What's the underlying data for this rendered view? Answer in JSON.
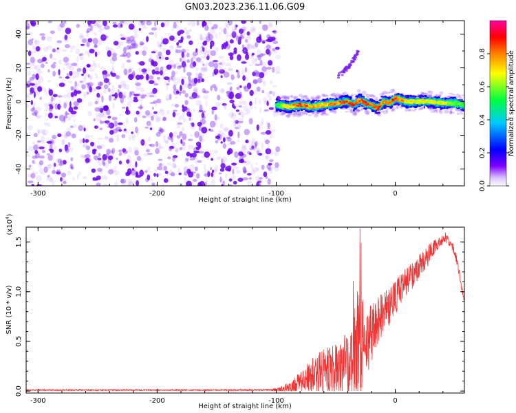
{
  "title": "GN03.2023.236.11.06.G09",
  "colors": {
    "snr_line": "#ee3333",
    "spectrum_noise": "#7a1ff0",
    "colorbar_stops": [
      "#ffffff",
      "#7f00ff",
      "#0000ff",
      "#00c8ff",
      "#00ff40",
      "#ffff00",
      "#ff8000",
      "#ff0000",
      "#ff00a0"
    ]
  },
  "chart_data": [
    {
      "type": "heatmap",
      "name": "spectrogram",
      "xlabel": "Height of straight line (km)",
      "ylabel": "Frequency (Hz)",
      "xlim": [
        -310,
        58
      ],
      "ylim": [
        -50,
        48
      ],
      "xticks": [
        -300,
        -200,
        -100,
        0
      ],
      "yticks": [
        -40,
        -20,
        0,
        20,
        40
      ],
      "xtick_labels": [
        "-300",
        "-200",
        "-100",
        "0"
      ],
      "ytick_labels": [
        "-40",
        "-20",
        "0",
        "20",
        "40"
      ],
      "noise_region_x": [
        -310,
        -98
      ],
      "ridge": {
        "x": [
          -100,
          -90,
          -80,
          -70,
          -60,
          -50,
          -40,
          -35,
          -30,
          -25,
          -20,
          -15,
          -10,
          -5,
          0,
          10,
          20,
          30,
          40,
          50,
          58
        ],
        "freq": [
          -2,
          -3,
          -2,
          -3,
          -2,
          -1,
          0,
          -2,
          1,
          -1,
          -2,
          -4,
          0,
          -1,
          2,
          0,
          0,
          0,
          -1,
          -1,
          -2
        ],
        "amplitude": [
          0.55,
          0.75,
          0.85,
          0.8,
          0.75,
          0.85,
          0.85,
          0.9,
          0.85,
          0.95,
          0.85,
          0.9,
          0.8,
          0.8,
          0.9,
          0.75,
          0.7,
          0.7,
          0.7,
          0.6,
          0.55
        ]
      },
      "branch": {
        "x": [
          -48,
          -40,
          -35,
          -30
        ],
        "freq": [
          15,
          20,
          25,
          31
        ]
      }
    },
    {
      "type": "colorbar",
      "label": "Normalized spectral amplitude",
      "range": [
        0.0,
        1.0
      ],
      "ticks": [
        0.0,
        0.2,
        0.4,
        0.6,
        0.8
      ],
      "tick_labels": [
        "0.0",
        "0.2",
        "0.4",
        "0.6",
        "0.8"
      ]
    },
    {
      "type": "line",
      "name": "snr",
      "xlabel": "Height of straight line (km)",
      "ylabel": "SNR (10 * v/v)",
      "y_multiplier_label": "(x10",
      "y_multiplier_exp": "4",
      "y_multiplier_close": ")",
      "xlim": [
        -310,
        58
      ],
      "ylim": [
        -0.02,
        1.65
      ],
      "xticks": [
        -300,
        -200,
        -100,
        0
      ],
      "yticks": [
        0.0,
        0.5,
        1.0,
        1.5
      ],
      "xtick_labels": [
        "-300",
        "-200",
        "-100",
        "0"
      ],
      "ytick_labels": [
        "0.0",
        "0.5",
        "1.0",
        "1.5"
      ],
      "envelope": {
        "x": [
          -310,
          -250,
          -200,
          -150,
          -105,
          -95,
          -85,
          -75,
          -65,
          -55,
          -45,
          -38,
          -33,
          -30,
          -27,
          -25,
          -22,
          -20,
          -15,
          -10,
          -5,
          0,
          10,
          20,
          30,
          38,
          42,
          48,
          52,
          58
        ],
        "base": [
          0.01,
          0.01,
          0.01,
          0.01,
          0.01,
          0.02,
          0.05,
          0.12,
          0.18,
          0.22,
          0.26,
          0.3,
          0.35,
          0.4,
          0.45,
          0.5,
          0.55,
          0.58,
          0.7,
          0.78,
          0.85,
          0.95,
          1.1,
          1.25,
          1.4,
          1.5,
          1.55,
          1.45,
          1.3,
          0.9
        ],
        "jitter": [
          0.006,
          0.008,
          0.006,
          0.006,
          0.01,
          0.03,
          0.08,
          0.15,
          0.2,
          0.25,
          0.3,
          0.35,
          0.6,
          0.8,
          0.5,
          0.45,
          0.35,
          0.3,
          0.25,
          0.22,
          0.2,
          0.18,
          0.15,
          0.12,
          0.1,
          0.06,
          0.05,
          0.05,
          0.04,
          0.03
        ]
      }
    }
  ]
}
